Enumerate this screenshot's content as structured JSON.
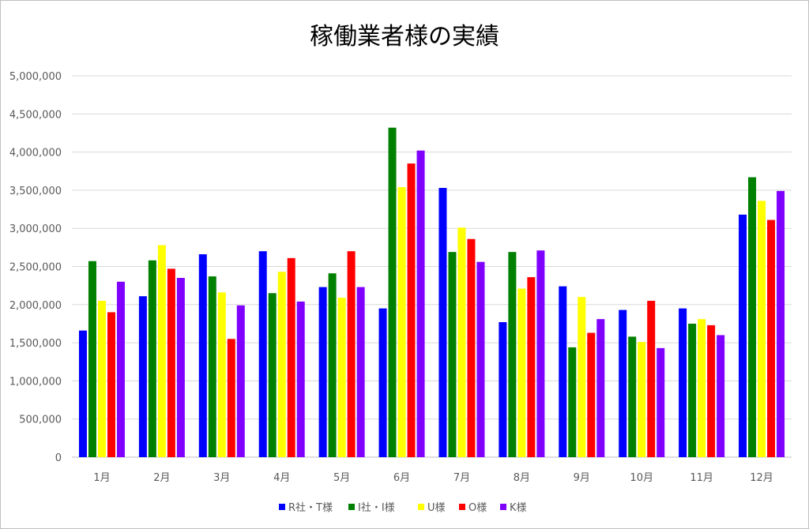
{
  "chart_data": {
    "type": "bar",
    "title": "稼働業者様の実績",
    "xlabel": "",
    "ylabel": "",
    "categories": [
      "1月",
      "2月",
      "3月",
      "4月",
      "5月",
      "6月",
      "7月",
      "8月",
      "9月",
      "10月",
      "11月",
      "12月"
    ],
    "ylim": [
      0,
      5000000
    ],
    "yticks": [
      0,
      500000,
      1000000,
      1500000,
      2000000,
      2500000,
      3000000,
      3500000,
      4000000,
      4500000,
      5000000
    ],
    "ytick_labels": [
      "0",
      "500,000",
      "1,000,000",
      "1,500,000",
      "2,000,000",
      "2,500,000",
      "3,000,000",
      "3,500,000",
      "4,000,000",
      "4,500,000",
      "5,000,000"
    ],
    "grid": true,
    "legend_position": "bottom",
    "series": [
      {
        "name": "R社・T様",
        "color": "#0000FF",
        "values": [
          1660000,
          2110000,
          2660000,
          2700000,
          2230000,
          1950000,
          3530000,
          1770000,
          2240000,
          1930000,
          1950000,
          3180000
        ]
      },
      {
        "name": "I社・I様",
        "color": "#008000",
        "values": [
          2570000,
          2580000,
          2370000,
          2150000,
          2410000,
          4320000,
          2690000,
          2690000,
          1440000,
          1580000,
          1750000,
          3670000
        ]
      },
      {
        "name": "U様",
        "color": "#FFFF00",
        "values": [
          2050000,
          2780000,
          2160000,
          2430000,
          2090000,
          3540000,
          3010000,
          2210000,
          2100000,
          1510000,
          1810000,
          3360000
        ]
      },
      {
        "name": "O様",
        "color": "#FF0000",
        "values": [
          1900000,
          2470000,
          1550000,
          2610000,
          2700000,
          3850000,
          2860000,
          2360000,
          1630000,
          2050000,
          1730000,
          3110000
        ]
      },
      {
        "name": "K様",
        "color": "#7F00FF",
        "values": [
          2300000,
          2350000,
          1990000,
          2040000,
          2230000,
          4020000,
          2560000,
          2710000,
          1810000,
          1430000,
          1600000,
          3490000
        ]
      }
    ]
  }
}
